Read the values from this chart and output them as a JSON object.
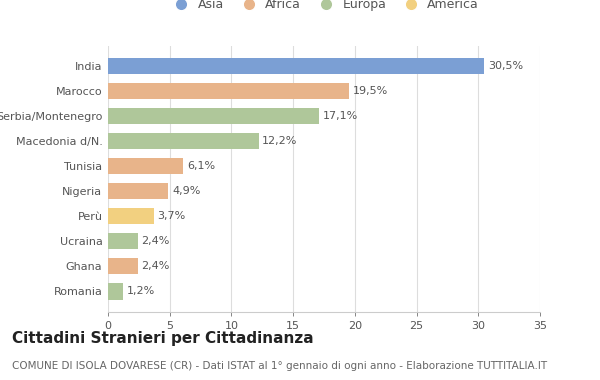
{
  "categories": [
    "India",
    "Marocco",
    "Serbia/Montenegro",
    "Macedonia d/N.",
    "Tunisia",
    "Nigeria",
    "Perù",
    "Ucraina",
    "Ghana",
    "Romania"
  ],
  "values": [
    30.5,
    19.5,
    17.1,
    12.2,
    6.1,
    4.9,
    3.7,
    2.4,
    2.4,
    1.2
  ],
  "labels": [
    "30,5%",
    "19,5%",
    "17,1%",
    "12,2%",
    "6,1%",
    "4,9%",
    "3,7%",
    "2,4%",
    "2,4%",
    "1,2%"
  ],
  "colors": [
    "#7b9fd4",
    "#e8b48a",
    "#afc79a",
    "#afc79a",
    "#e8b48a",
    "#e8b48a",
    "#f2d080",
    "#afc79a",
    "#e8b48a",
    "#afc79a"
  ],
  "legend_labels": [
    "Asia",
    "Africa",
    "Europa",
    "America"
  ],
  "legend_colors": [
    "#7b9fd4",
    "#e8b48a",
    "#afc79a",
    "#f2d080"
  ],
  "title": "Cittadini Stranieri per Cittadinanza",
  "subtitle": "COMUNE DI ISOLA DOVARESE (CR) - Dati ISTAT al 1° gennaio di ogni anno - Elaborazione TUTTITALIA.IT",
  "xlim": [
    0,
    35
  ],
  "xticks": [
    0,
    5,
    10,
    15,
    20,
    25,
    30,
    35
  ],
  "background_color": "#ffffff",
  "bar_height": 0.65,
  "title_fontsize": 11,
  "subtitle_fontsize": 7.5,
  "label_fontsize": 8,
  "tick_fontsize": 8,
  "legend_fontsize": 9
}
